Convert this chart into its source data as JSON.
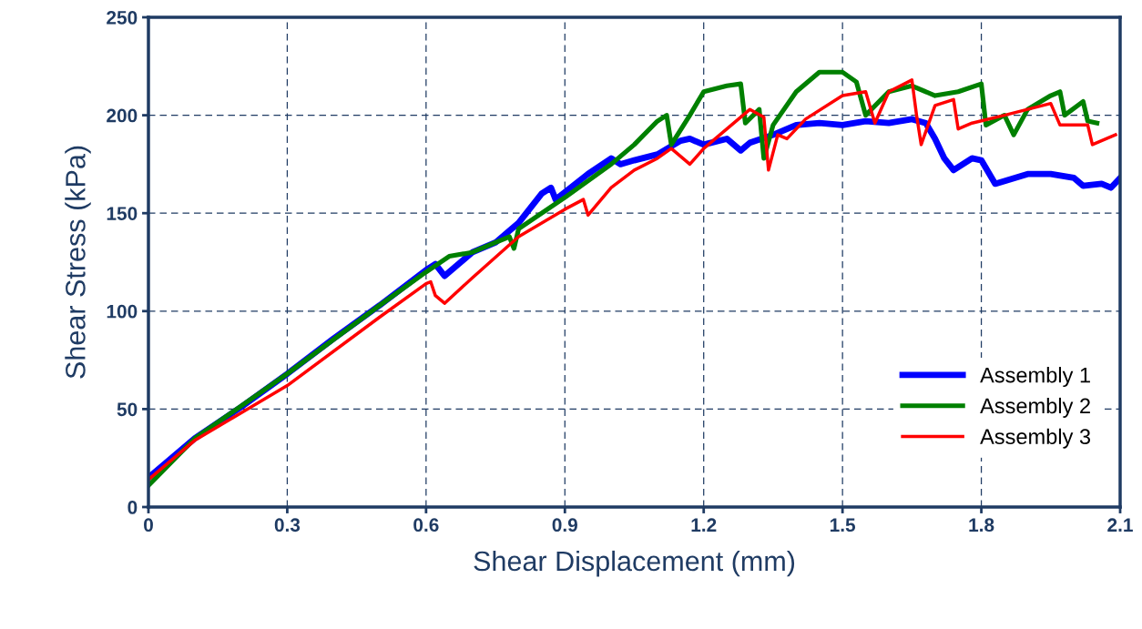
{
  "chart_data": {
    "type": "line",
    "xlabel": "Shear Displacement (mm)",
    "ylabel": "Shear Stress (kPa)",
    "xlim": [
      0,
      2.1
    ],
    "xticks": [
      0,
      0.3,
      0.6,
      0.9,
      1.2,
      1.5,
      1.8,
      2.1
    ],
    "ylim": [
      0,
      250
    ],
    "yticks": [
      0,
      50,
      100,
      150,
      200,
      250
    ],
    "grid": true,
    "legend": "bottom right",
    "marker": "none",
    "line_style": "solid",
    "series": [
      {
        "name": "Assembly 1",
        "color": "#0000ff",
        "x": [
          0,
          0.1,
          0.2,
          0.3,
          0.4,
          0.5,
          0.6,
          0.62,
          0.64,
          0.7,
          0.75,
          0.8,
          0.85,
          0.87,
          0.88,
          0.95,
          1.0,
          1.02,
          1.05,
          1.1,
          1.15,
          1.17,
          1.2,
          1.25,
          1.28,
          1.3,
          1.35,
          1.4,
          1.45,
          1.5,
          1.55,
          1.6,
          1.65,
          1.68,
          1.7,
          1.72,
          1.74,
          1.78,
          1.8,
          1.83,
          1.9,
          1.95,
          2.0,
          2.02,
          2.06,
          2.08,
          2.1
        ],
        "values": [
          15,
          35,
          51,
          68,
          86,
          103,
          121,
          124,
          118,
          130,
          135,
          145,
          160,
          163,
          157,
          170,
          178,
          175,
          177,
          180,
          187,
          188,
          185,
          188,
          182,
          186,
          190,
          195,
          196,
          195,
          197,
          196,
          198,
          196,
          188,
          178,
          172,
          178,
          177,
          165,
          170,
          170,
          168,
          164,
          165,
          163,
          168
        ]
      },
      {
        "name": "Assembly 2",
        "color": "#008000",
        "x": [
          0,
          0.1,
          0.3,
          0.5,
          0.6,
          0.65,
          0.7,
          0.75,
          0.78,
          0.79,
          0.8,
          0.9,
          1.0,
          1.05,
          1.1,
          1.12,
          1.13,
          1.17,
          1.2,
          1.25,
          1.28,
          1.29,
          1.32,
          1.33,
          1.35,
          1.4,
          1.45,
          1.5,
          1.53,
          1.55,
          1.6,
          1.65,
          1.7,
          1.75,
          1.8,
          1.81,
          1.85,
          1.87,
          1.9,
          1.95,
          1.97,
          1.98,
          2.02,
          2.03,
          2.05
        ],
        "values": [
          11,
          35,
          68,
          103,
          120,
          128,
          130,
          135,
          138,
          132,
          142,
          158,
          175,
          185,
          197,
          200,
          185,
          200,
          212,
          215,
          216,
          196,
          203,
          178,
          195,
          212,
          222,
          222,
          217,
          200,
          212,
          215,
          210,
          212,
          216,
          195,
          200,
          190,
          203,
          210,
          212,
          200,
          207,
          197,
          196
        ]
      },
      {
        "name": "Assembly 3",
        "color": "#ff0000",
        "x": [
          0,
          0.1,
          0.3,
          0.5,
          0.6,
          0.61,
          0.62,
          0.64,
          0.7,
          0.8,
          0.9,
          0.94,
          0.95,
          1.0,
          1.05,
          1.1,
          1.13,
          1.17,
          1.2,
          1.25,
          1.3,
          1.33,
          1.34,
          1.36,
          1.38,
          1.42,
          1.5,
          1.55,
          1.57,
          1.6,
          1.65,
          1.66,
          1.67,
          1.7,
          1.74,
          1.75,
          1.78,
          1.85,
          1.9,
          1.95,
          1.97,
          2.03,
          2.04,
          2.07,
          2.09
        ],
        "values": [
          14,
          34,
          62,
          97,
          114,
          115,
          108,
          104,
          117,
          138,
          152,
          157,
          149,
          163,
          172,
          178,
          183,
          175,
          183,
          193,
          203,
          199,
          172,
          190,
          188,
          198,
          210,
          212,
          196,
          212,
          218,
          200,
          185,
          205,
          208,
          193,
          196,
          200,
          203,
          206,
          195,
          195,
          185,
          188,
          190
        ]
      }
    ]
  }
}
